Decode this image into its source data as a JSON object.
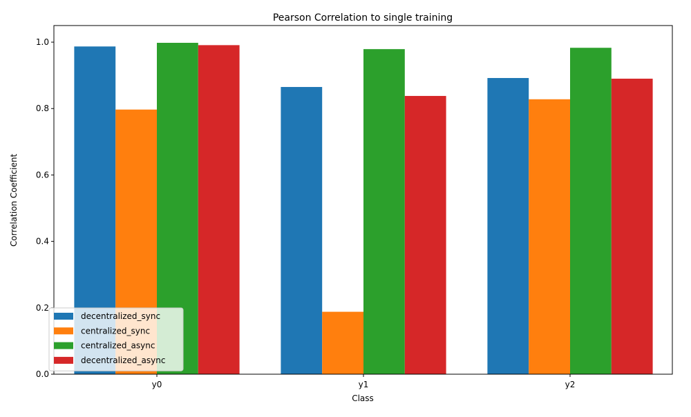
{
  "chart_data": {
    "type": "bar",
    "title": "Pearson Correlation to single training",
    "xlabel": "Class",
    "ylabel": "Correlation Coefficient",
    "categories": [
      "y0",
      "y1",
      "y2"
    ],
    "ylim": [
      0,
      1.05
    ],
    "yticks": [
      "0.0",
      "0.2",
      "0.4",
      "0.6",
      "0.8",
      "1.0"
    ],
    "grid": false,
    "legend_position": "lower-left",
    "series": [
      {
        "name": "decentralized_sync",
        "color": "#1f77b4",
        "values": [
          0.987,
          0.865,
          0.892
        ]
      },
      {
        "name": "centralized_sync",
        "color": "#ff7f0e",
        "values": [
          0.797,
          0.188,
          0.828
        ]
      },
      {
        "name": "centralized_async",
        "color": "#2ca02c",
        "values": [
          0.998,
          0.979,
          0.983
        ]
      },
      {
        "name": "decentralized_async",
        "color": "#d62728",
        "values": [
          0.991,
          0.838,
          0.89
        ]
      }
    ]
  }
}
